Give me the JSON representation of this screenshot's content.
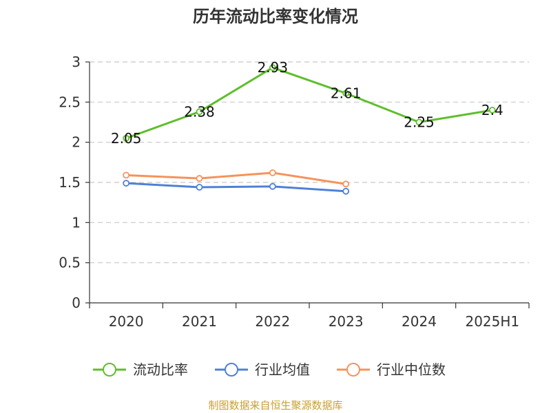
{
  "chart_data": {
    "type": "line",
    "title": "历年流动比率变化情况",
    "categories": [
      "2020",
      "2021",
      "2022",
      "2023",
      "2024",
      "2025H1"
    ],
    "ylim": [
      0,
      3
    ],
    "yticks": [
      "0",
      "0.5",
      "1",
      "1.5",
      "2",
      "2.5",
      "3"
    ],
    "grid": true,
    "legend_position": "bottom",
    "series": [
      {
        "name": "流动比率",
        "color": "#5cbf2a",
        "values": [
          2.05,
          2.38,
          2.93,
          2.61,
          2.25,
          2.4
        ],
        "labels": [
          "2.05",
          "2.38",
          "2.93",
          "2.61",
          "2.25",
          "2.4"
        ]
      },
      {
        "name": "行业均值",
        "color": "#4f80d8",
        "values": [
          1.49,
          1.44,
          1.45,
          1.39,
          null,
          null
        ]
      },
      {
        "name": "行业中位数",
        "color": "#f5935a",
        "values": [
          1.59,
          1.55,
          1.62,
          1.48,
          null,
          null
        ]
      }
    ]
  },
  "source": "制图数据来自恒生聚源数据库"
}
